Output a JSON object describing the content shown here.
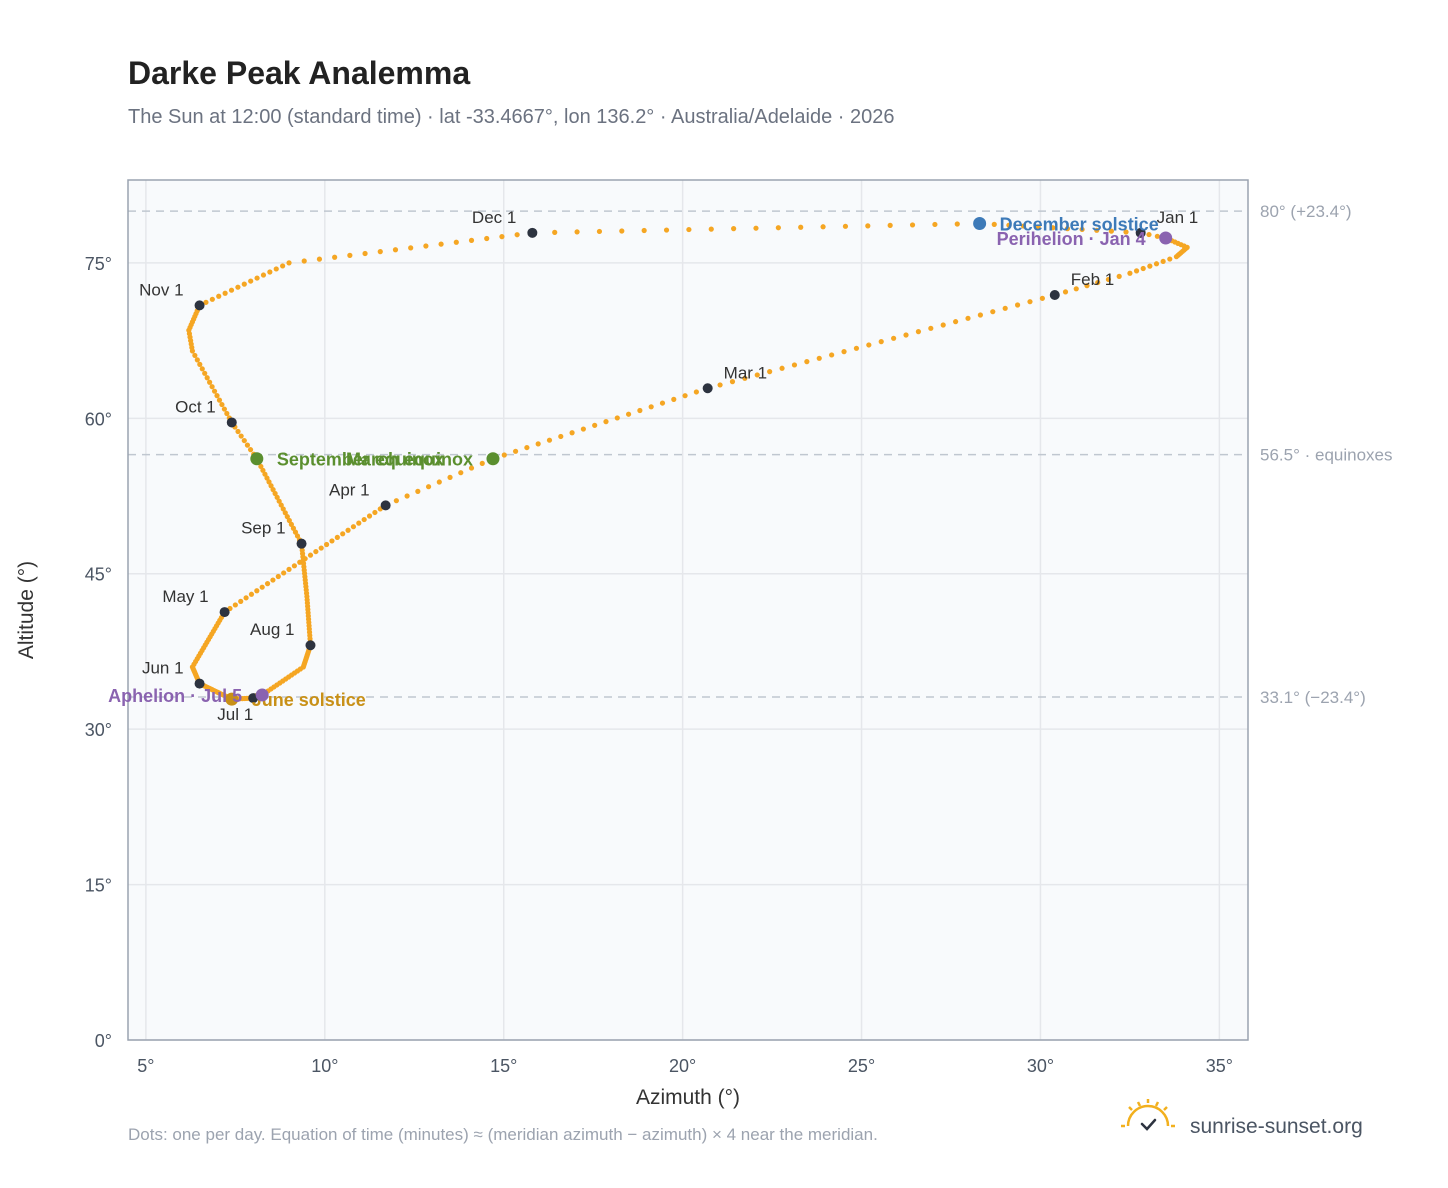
{
  "title": "Darke Peak Analemma",
  "subtitle": "The Sun at 12:00 (standard time) · lat -33.4667°, lon 136.2° · Australia/Adelaide · 2026",
  "footnote": "Dots: one per day. Equation of time (minutes) ≈ (meridian azimuth − azimuth) × 4 near the meridian.",
  "brand": {
    "name": "sunrise-sunset.org",
    "icon": "sun-checkmark-icon"
  },
  "colors": {
    "path": "#f5a623",
    "month_marker": "#2d3340",
    "equinox": "#5b8f2f",
    "december_solstice": "#3d7ab8",
    "june_solstice": "#c89017",
    "perihelion_aphelion": "#8a63b0",
    "plot_bg": "#f8fafc",
    "grid": "#e5e7eb",
    "reference_line": "#c0c7d0"
  },
  "chart_data": {
    "type": "scatter",
    "title": "Darke Peak Analemma",
    "xlabel": "Azimuth (°)",
    "ylabel": "Altitude (°)",
    "xlim": [
      4.5,
      35.8
    ],
    "ylim": [
      0,
      83
    ],
    "x_ticks": [
      {
        "value": 5,
        "label": "5°"
      },
      {
        "value": 10,
        "label": "10°"
      },
      {
        "value": 15,
        "label": "15°"
      },
      {
        "value": 20,
        "label": "20°"
      },
      {
        "value": 25,
        "label": "25°"
      },
      {
        "value": 30,
        "label": "30°"
      },
      {
        "value": 35,
        "label": "35°"
      }
    ],
    "y_ticks": [
      {
        "value": 0,
        "label": "0°"
      },
      {
        "value": 15,
        "label": "15°"
      },
      {
        "value": 30,
        "label": "30°"
      },
      {
        "value": 45,
        "label": "45°"
      },
      {
        "value": 60,
        "label": "60°"
      },
      {
        "value": 75,
        "label": "75°"
      }
    ],
    "grid": true,
    "path_anchors": [
      {
        "month": "Jan 1",
        "day": 1,
        "az": 32.8,
        "alt": 77.9
      },
      {
        "day": 4,
        "az": 33.5,
        "alt": 77.4
      },
      {
        "day": 11,
        "az": 34.1,
        "alt": 76.5
      },
      {
        "day": 18,
        "az": 33.8,
        "alt": 75.6
      },
      {
        "day": 25,
        "az": 32.5,
        "alt": 74.0
      },
      {
        "month": "Feb 1",
        "day": 32,
        "az": 30.4,
        "alt": 71.9
      },
      {
        "month": "Mar 1",
        "day": 60,
        "az": 20.7,
        "alt": 62.9
      },
      {
        "day": 79,
        "az": 14.7,
        "alt": 56.1
      },
      {
        "day": 81,
        "az": 14.7,
        "alt": 56.1
      },
      {
        "month": "Apr 1",
        "day": 91,
        "az": 11.7,
        "alt": 51.6
      },
      {
        "month": "May 1",
        "day": 121,
        "az": 7.2,
        "alt": 41.3
      },
      {
        "day": 141,
        "az": 6.3,
        "alt": 36.0
      },
      {
        "month": "Jun 1",
        "day": 152,
        "az": 6.5,
        "alt": 34.4
      },
      {
        "day": 172,
        "az": 7.4,
        "alt": 32.9
      },
      {
        "month": "Jul 1",
        "day": 182,
        "az": 8.0,
        "alt": 33.0
      },
      {
        "day": 186,
        "az": 8.25,
        "alt": 33.3
      },
      {
        "day": 200,
        "az": 9.4,
        "alt": 36.0
      },
      {
        "month": "Aug 1",
        "day": 213,
        "az": 9.6,
        "alt": 38.1
      },
      {
        "day": 228,
        "az": 9.5,
        "alt": 42.8
      },
      {
        "month": "Sep 1",
        "day": 244,
        "az": 9.35,
        "alt": 47.9
      },
      {
        "day": 266,
        "az": 8.1,
        "alt": 56.1
      },
      {
        "month": "Oct 1",
        "day": 274,
        "az": 7.4,
        "alt": 59.6
      },
      {
        "day": 290,
        "az": 6.3,
        "alt": 66.5
      },
      {
        "day": 296,
        "az": 6.2,
        "alt": 68.5
      },
      {
        "month": "Nov 1",
        "day": 305,
        "az": 6.5,
        "alt": 70.9
      },
      {
        "day": 319,
        "az": 9.0,
        "alt": 75.0
      },
      {
        "month": "Dec 1",
        "day": 335,
        "az": 15.8,
        "alt": 77.9
      },
      {
        "day": 355,
        "az": 28.3,
        "alt": 78.8
      },
      {
        "day": 366,
        "az": 32.8,
        "alt": 77.9
      }
    ],
    "month_markers": [
      {
        "label": "Jan 1",
        "az": 32.8,
        "alt": 77.9,
        "anchor": "right"
      },
      {
        "label": "Feb 1",
        "az": 30.4,
        "alt": 71.9,
        "anchor": "right"
      },
      {
        "label": "Mar 1",
        "az": 20.7,
        "alt": 62.9,
        "anchor": "right"
      },
      {
        "label": "Apr 1",
        "az": 11.7,
        "alt": 51.6,
        "anchor": "left"
      },
      {
        "label": "May 1",
        "az": 7.2,
        "alt": 41.3,
        "anchor": "left"
      },
      {
        "label": "Jun 1",
        "az": 6.5,
        "alt": 34.4,
        "anchor": "left"
      },
      {
        "label": "Jul 1",
        "az": 8.0,
        "alt": 33.0,
        "anchor": "below"
      },
      {
        "label": "Aug 1",
        "az": 9.6,
        "alt": 38.1,
        "anchor": "left"
      },
      {
        "label": "Sep 1",
        "az": 9.35,
        "alt": 47.9,
        "anchor": "left"
      },
      {
        "label": "Oct 1",
        "az": 7.4,
        "alt": 59.6,
        "anchor": "left"
      },
      {
        "label": "Nov 1",
        "az": 6.5,
        "alt": 70.9,
        "anchor": "left"
      },
      {
        "label": "Dec 1",
        "az": 15.8,
        "alt": 77.9,
        "anchor": "left"
      }
    ],
    "events": [
      {
        "label": "December solstice",
        "az": 28.3,
        "alt": 78.8,
        "color_key": "december_solstice",
        "side": "right"
      },
      {
        "label": "Perihelion · Jan 4",
        "az": 33.5,
        "alt": 77.4,
        "color_key": "perihelion_aphelion",
        "side": "left"
      },
      {
        "label": "March equinox",
        "az": 14.7,
        "alt": 56.1,
        "color_key": "equinox",
        "side": "left"
      },
      {
        "label": "September equinox",
        "az": 8.1,
        "alt": 56.1,
        "color_key": "equinox",
        "side": "right"
      },
      {
        "label": "June solstice",
        "az": 7.4,
        "alt": 32.9,
        "color_key": "june_solstice",
        "side": "right"
      },
      {
        "label": "Aphelion · Jul 5",
        "az": 8.25,
        "alt": 33.3,
        "color_key": "perihelion_aphelion",
        "side": "left"
      }
    ],
    "reference_lines": [
      {
        "value": 80.0,
        "label": "80° (+23.4°)"
      },
      {
        "value": 56.5,
        "label": "56.5° · equinoxes"
      },
      {
        "value": 33.1,
        "label": "33.1° (−23.4°)"
      }
    ]
  }
}
